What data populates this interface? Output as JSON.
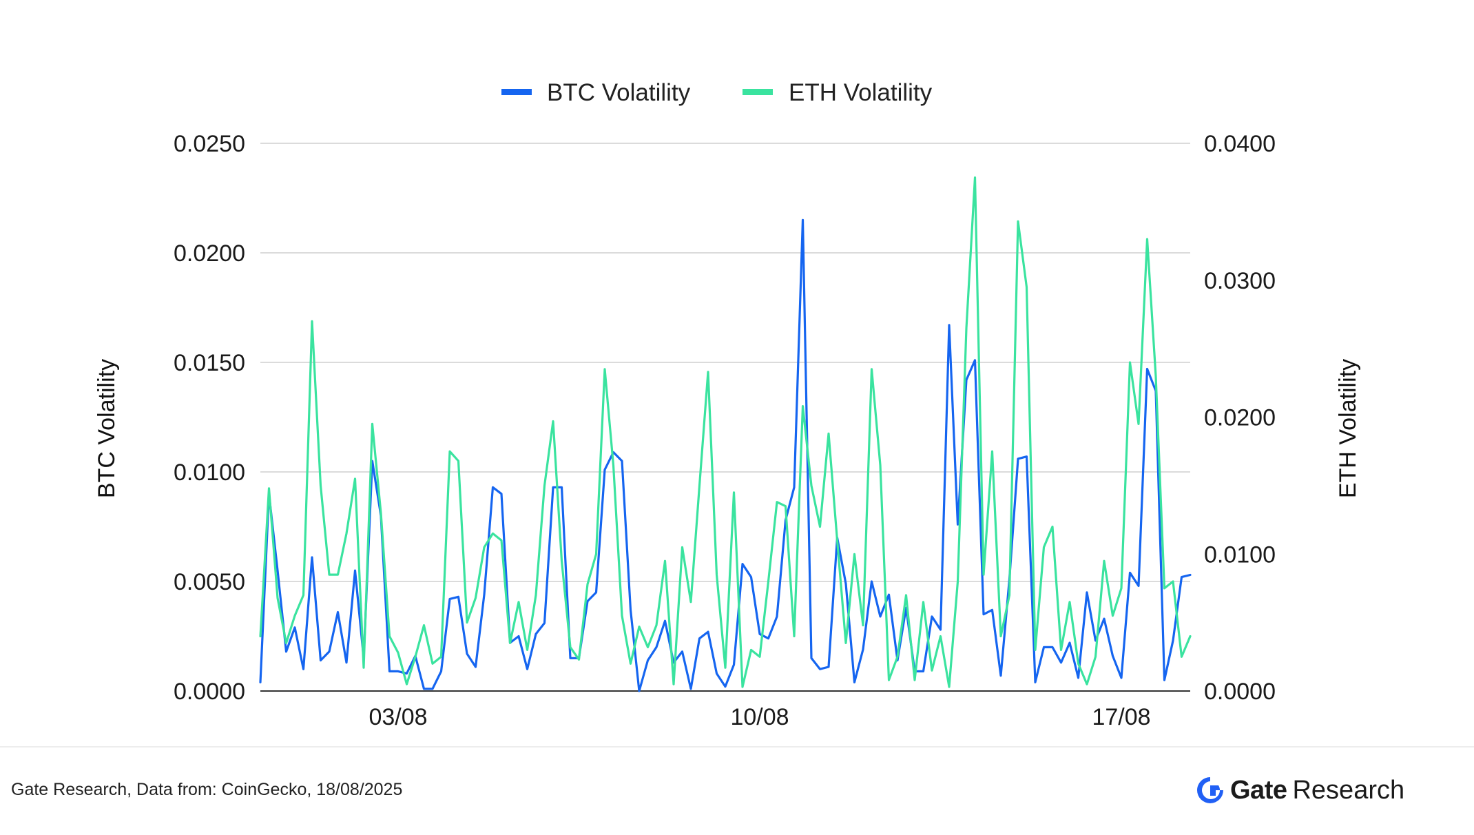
{
  "chart_data": {
    "type": "line",
    "legend_position": "top-center",
    "grid": true,
    "x_ticks": [
      "03/08",
      "10/08",
      "17/08"
    ],
    "x_tick_index": [
      16,
      58,
      100
    ],
    "y_left": {
      "label": "BTC Volatility",
      "ylim": [
        0,
        0.025
      ],
      "ticks": [
        "0.0000",
        "0.0050",
        "0.0100",
        "0.0150",
        "0.0200",
        "0.0250"
      ]
    },
    "y_right": {
      "label": "ETH Volatility",
      "ylim": [
        0,
        0.04
      ],
      "ticks": [
        "0.0000",
        "0.0100",
        "0.0200",
        "0.0300",
        "0.0400"
      ]
    },
    "series": [
      {
        "name": "BTC Volatility",
        "axis": "left",
        "color": "#1565f0",
        "values": [
          0.0004,
          0.009,
          0.0055,
          0.0018,
          0.0029,
          0.001,
          0.0061,
          0.0014,
          0.0018,
          0.0036,
          0.0013,
          0.0055,
          0.0015,
          0.0105,
          0.008,
          0.0009,
          0.0009,
          0.0008,
          0.0016,
          0.0001,
          0.0001,
          0.0009,
          0.0042,
          0.0043,
          0.0017,
          0.0011,
          0.0044,
          0.0093,
          0.009,
          0.0022,
          0.0025,
          0.001,
          0.0026,
          0.0031,
          0.0093,
          0.0093,
          0.0015,
          0.0015,
          0.0041,
          0.0045,
          0.0101,
          0.0109,
          0.0105,
          0.0037,
          0.0,
          0.0014,
          0.002,
          0.0032,
          0.0013,
          0.0018,
          0.0001,
          0.0024,
          0.0027,
          0.0008,
          0.0002,
          0.0012,
          0.0058,
          0.0052,
          0.0026,
          0.0024,
          0.0034,
          0.0078,
          0.0093,
          0.0215,
          0.0015,
          0.001,
          0.0011,
          0.007,
          0.0049,
          0.0004,
          0.0019,
          0.005,
          0.0034,
          0.0044,
          0.0014,
          0.0038,
          0.0009,
          0.0009,
          0.0034,
          0.0028,
          0.0167,
          0.0076,
          0.0142,
          0.0151,
          0.0035,
          0.0037,
          0.0007,
          0.0051,
          0.0106,
          0.0107,
          0.0004,
          0.002,
          0.002,
          0.0013,
          0.0022,
          0.0006,
          0.0045,
          0.0023,
          0.0033,
          0.0016,
          0.0006,
          0.0054,
          0.0048,
          0.0147,
          0.0137,
          0.0005,
          0.0023,
          0.0052,
          0.0053
        ]
      },
      {
        "name": "ETH Volatility",
        "axis": "right",
        "color": "#3ae39f",
        "values": [
          0.004,
          0.0148,
          0.0068,
          0.0035,
          0.0055,
          0.007,
          0.027,
          0.015,
          0.0085,
          0.0085,
          0.0115,
          0.0155,
          0.0017,
          0.0195,
          0.013,
          0.004,
          0.0028,
          0.0005,
          0.0025,
          0.0048,
          0.002,
          0.0025,
          0.0175,
          0.0168,
          0.005,
          0.0068,
          0.0105,
          0.0115,
          0.011,
          0.0035,
          0.0065,
          0.003,
          0.007,
          0.015,
          0.0197,
          0.0095,
          0.0032,
          0.0023,
          0.0078,
          0.01,
          0.0235,
          0.0165,
          0.0055,
          0.002,
          0.0047,
          0.0032,
          0.0048,
          0.0095,
          0.0005,
          0.0105,
          0.0065,
          0.015,
          0.0233,
          0.0085,
          0.0017,
          0.0145,
          0.0003,
          0.003,
          0.0025,
          0.008,
          0.0138,
          0.0135,
          0.004,
          0.0208,
          0.015,
          0.012,
          0.0188,
          0.011,
          0.0035,
          0.01,
          0.0048,
          0.0235,
          0.0165,
          0.0008,
          0.0025,
          0.007,
          0.0008,
          0.0065,
          0.0015,
          0.004,
          0.0003,
          0.008,
          0.0265,
          0.0375,
          0.0085,
          0.0175,
          0.004,
          0.007,
          0.0343,
          0.0295,
          0.003,
          0.0105,
          0.012,
          0.003,
          0.0065,
          0.002,
          0.0005,
          0.0025,
          0.0095,
          0.0055,
          0.0075,
          0.024,
          0.0195,
          0.033,
          0.023,
          0.0075,
          0.008,
          0.0025,
          0.004
        ]
      }
    ]
  },
  "footer": {
    "source": "Gate Research, Data from: CoinGecko, 18/08/2025",
    "brand_name": "Gate",
    "brand_sub": "Research",
    "brand_icon": "gate-logo-icon",
    "brand_color": "#2160f5"
  }
}
